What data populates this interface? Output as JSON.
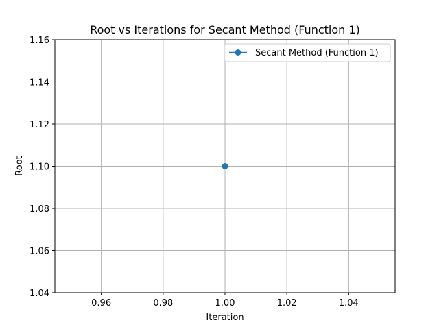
{
  "chart_data": {
    "type": "line",
    "title": "Root vs Iterations for Secant Method (Function 1)",
    "xlabel": "Iteration",
    "ylabel": "Root",
    "xlim": [
      0.945,
      1.055
    ],
    "ylim": [
      1.04,
      1.16
    ],
    "x_ticks": [
      0.96,
      0.98,
      1.0,
      1.02,
      1.04
    ],
    "x_tick_labels": [
      "0.96",
      "0.98",
      "1.00",
      "1.02",
      "1.04"
    ],
    "y_ticks": [
      1.04,
      1.06,
      1.08,
      1.1,
      1.12,
      1.14,
      1.16
    ],
    "y_tick_labels": [
      "1.04",
      "1.06",
      "1.08",
      "1.10",
      "1.12",
      "1.14",
      "1.16"
    ],
    "grid": true,
    "legend_position": "top-right",
    "series": [
      {
        "name": "Secant Method (Function 1)",
        "x": [
          1
        ],
        "y": [
          1.1
        ],
        "color": "#1f77b4",
        "marker": "circle"
      }
    ]
  }
}
